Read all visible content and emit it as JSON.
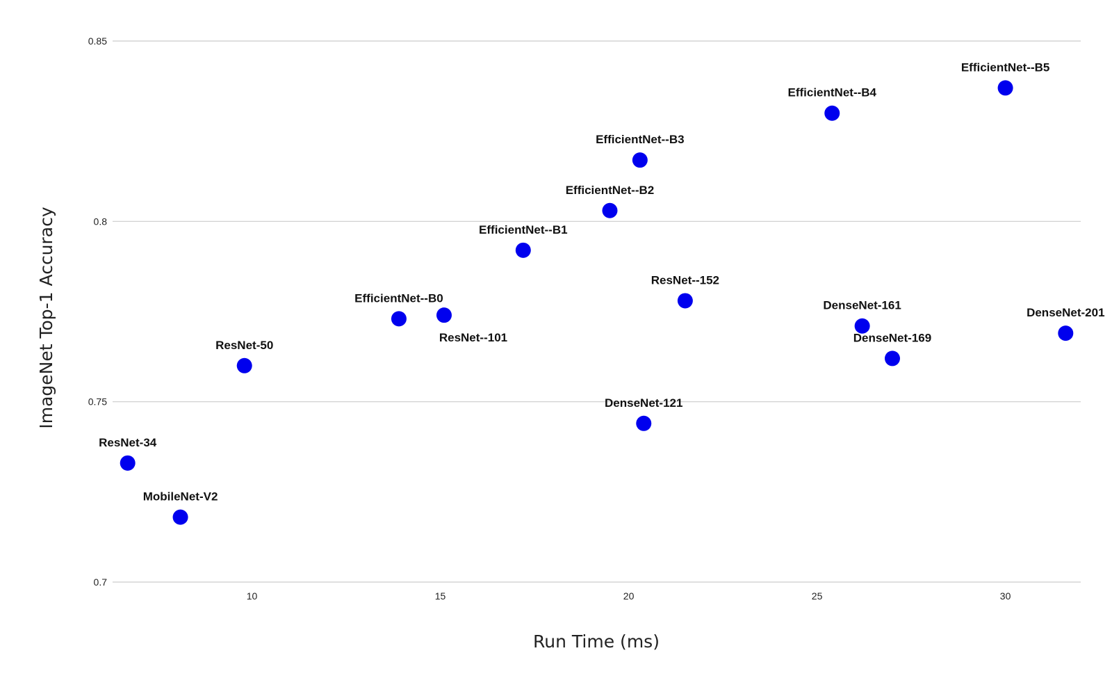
{
  "chart_data": {
    "type": "scatter",
    "title": "",
    "xlabel": "Run Time (ms)",
    "ylabel": "ImageNet Top-1 Accuracy",
    "xlim": [
      6.3,
      32
    ],
    "ylim": [
      0.7,
      0.85
    ],
    "x_ticks": [
      10,
      15,
      20,
      25,
      30
    ],
    "y_ticks": [
      0.7,
      0.75,
      0.8,
      0.85
    ],
    "x_tick_labels": [
      "10",
      "15",
      "20",
      "25",
      "30"
    ],
    "y_tick_labels": [
      "0.7",
      "0.75",
      "0.8",
      "0.85"
    ],
    "grid": "horizontal",
    "legend": "none",
    "marker_color": "#0000ee",
    "series": [
      {
        "points": [
          {
            "label": "ResNet-34",
            "x": 6.7,
            "y": 0.733
          },
          {
            "label": "MobileNet-V2",
            "x": 8.1,
            "y": 0.718
          },
          {
            "label": "ResNet-50",
            "x": 9.8,
            "y": 0.76
          },
          {
            "label": "EfficientNet--B0",
            "x": 13.9,
            "y": 0.773
          },
          {
            "label": "ResNet--101",
            "x": 15.1,
            "y": 0.774
          },
          {
            "label": "EfficientNet--B1",
            "x": 17.2,
            "y": 0.792
          },
          {
            "label": "EfficientNet--B2",
            "x": 19.5,
            "y": 0.803
          },
          {
            "label": "EfficientNet--B3",
            "x": 20.3,
            "y": 0.817
          },
          {
            "label": "DenseNet-121",
            "x": 20.4,
            "y": 0.744
          },
          {
            "label": "ResNet--152",
            "x": 21.5,
            "y": 0.778
          },
          {
            "label": "EfficientNet--B4",
            "x": 25.4,
            "y": 0.83
          },
          {
            "label": "DenseNet-161",
            "x": 26.2,
            "y": 0.771
          },
          {
            "label": "DenseNet-169",
            "x": 27.0,
            "y": 0.762
          },
          {
            "label": "EfficientNet--B5",
            "x": 30.0,
            "y": 0.837
          },
          {
            "label": "DenseNet-201",
            "x": 31.6,
            "y": 0.769
          }
        ]
      }
    ]
  }
}
